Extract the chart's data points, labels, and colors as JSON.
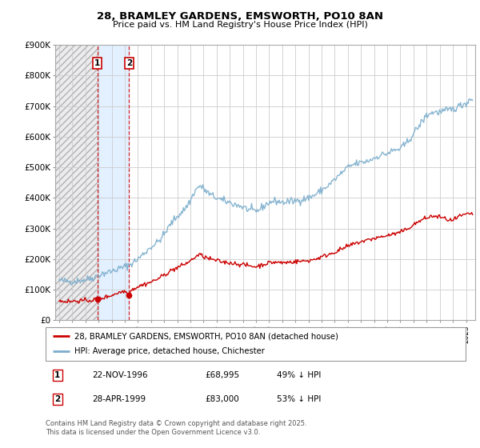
{
  "title": "28, BRAMLEY GARDENS, EMSWORTH, PO10 8AN",
  "subtitle": "Price paid vs. HM Land Registry's House Price Index (HPI)",
  "ylabel_ticks": [
    "£0",
    "£100K",
    "£200K",
    "£300K",
    "£400K",
    "£500K",
    "£600K",
    "£700K",
    "£800K",
    "£900K"
  ],
  "yvalues": [
    0,
    100000,
    200000,
    300000,
    400000,
    500000,
    600000,
    700000,
    800000,
    900000
  ],
  "ylim": [
    0,
    900000
  ],
  "xlim_start": 1993.7,
  "xlim_end": 2025.7,
  "sale1_x": 1996.9,
  "sale1_price": 68995,
  "sale2_x": 1999.33,
  "sale2_price": 83000,
  "legend_line1": "28, BRAMLEY GARDENS, EMSWORTH, PO10 8AN (detached house)",
  "legend_line2": "HPI: Average price, detached house, Chichester",
  "footer": "Contains HM Land Registry data © Crown copyright and database right 2025.\nThis data is licensed under the Open Government Licence v3.0.",
  "red_color": "#cc0000",
  "blue_color": "#7aadcc"
}
